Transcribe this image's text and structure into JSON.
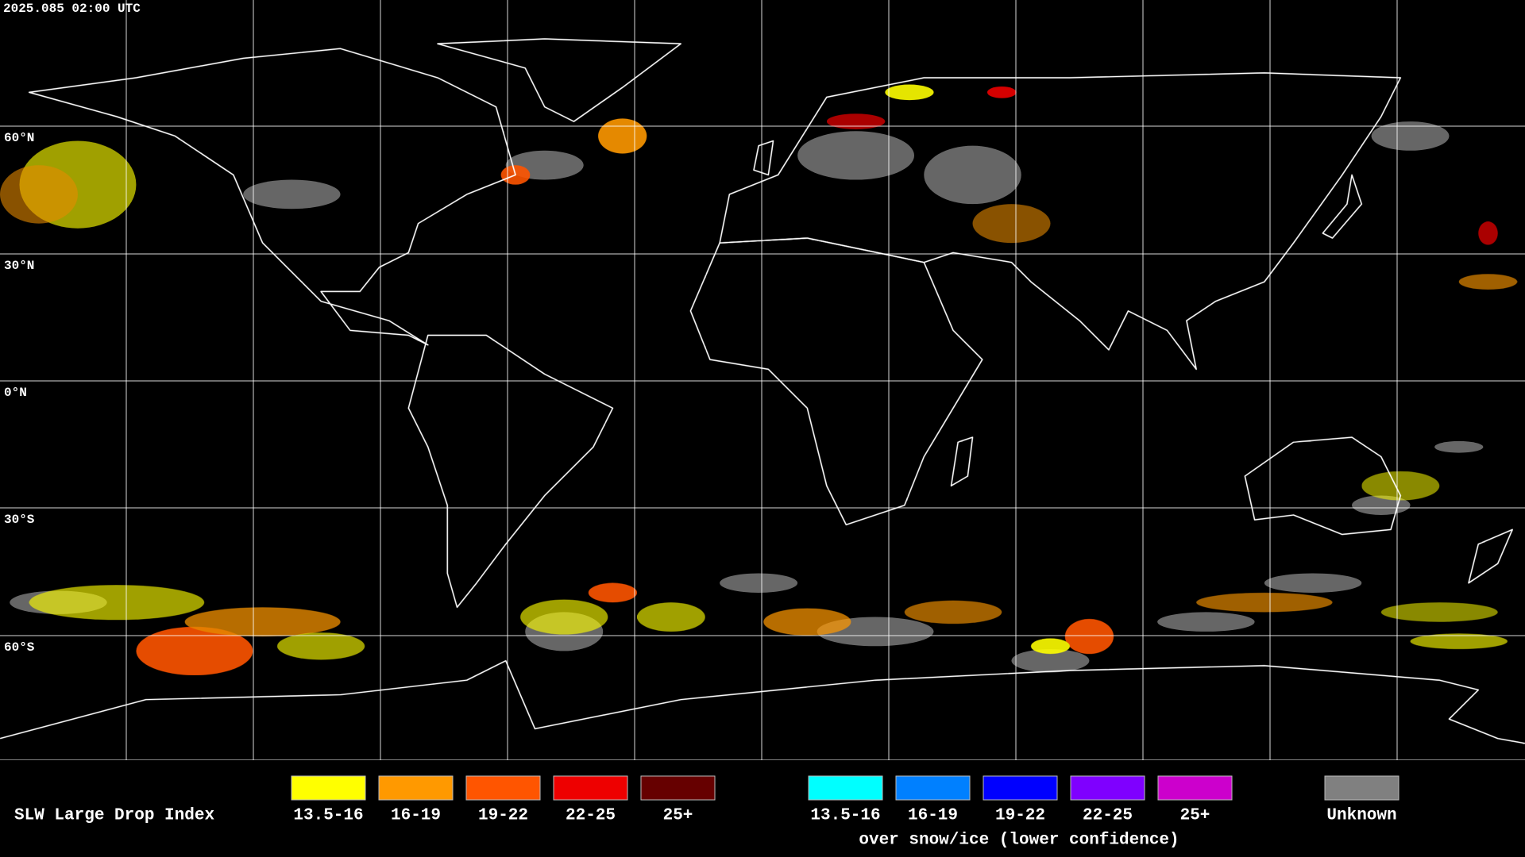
{
  "timestamp": "2025.085 02:00 UTC",
  "latitude_labels": [
    "60°N",
    "30°N",
    "0°N",
    "30°S",
    "60°S"
  ],
  "legend": {
    "title": "SLW Large Drop Index",
    "water": [
      {
        "label": "13.5-16",
        "color": "#ffff00"
      },
      {
        "label": "16-19",
        "color": "#ff9900"
      },
      {
        "label": "19-22",
        "color": "#ff5500"
      },
      {
        "label": "22-25",
        "color": "#ee0000"
      },
      {
        "label": "25+",
        "color": "#660000"
      }
    ],
    "snow_ice": [
      {
        "label": "13.5-16",
        "color": "#00ffff"
      },
      {
        "label": "16-19",
        "color": "#0080ff"
      },
      {
        "label": "19-22",
        "color": "#0000ff"
      },
      {
        "label": "22-25",
        "color": "#7f00ff"
      },
      {
        "label": "25+",
        "color": "#cc00cc"
      }
    ],
    "snow_ice_note": "over snow/ice (lower confidence)",
    "unknown": {
      "label": "Unknown",
      "color": "#808080"
    }
  }
}
